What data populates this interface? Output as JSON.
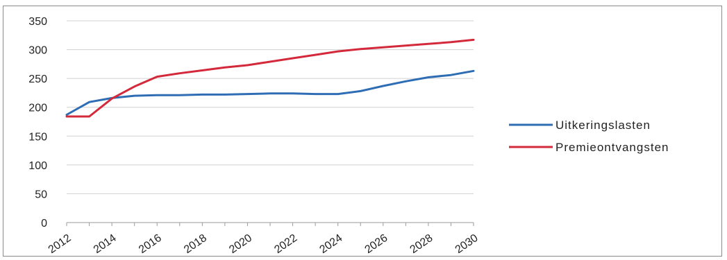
{
  "chart_data": {
    "type": "line",
    "title": "",
    "xlabel": "",
    "ylabel": "",
    "xlim": [
      2012,
      2030
    ],
    "ylim": [
      0,
      350
    ],
    "yticks": [
      0,
      50,
      100,
      150,
      200,
      250,
      300,
      350
    ],
    "ytick_labels": [
      "0",
      "50",
      "100",
      "150",
      "200",
      "250",
      "300",
      "350"
    ],
    "xtick_labels": [
      "2012",
      "2014",
      "2016",
      "2018",
      "2020",
      "2022",
      "2024",
      "2026",
      "2028",
      "2030"
    ],
    "grid": "horizontal",
    "legend_position": "right",
    "series": [
      {
        "name": "Uitkeringslasten",
        "color": "#2e6db4",
        "x": [
          2012,
          2013,
          2014,
          2015,
          2016,
          2017,
          2018,
          2019,
          2020,
          2021,
          2022,
          2023,
          2024,
          2025,
          2026,
          2027,
          2028,
          2029,
          2030
        ],
        "y": [
          187,
          209,
          216,
          220,
          221,
          221,
          222,
          222,
          223,
          224,
          224,
          223,
          223,
          228,
          237,
          245,
          252,
          256,
          263
        ]
      },
      {
        "name": "Premieontvangsten",
        "color": "#d3293b",
        "x": [
          2012,
          2013,
          2014,
          2015,
          2016,
          2017,
          2018,
          2019,
          2020,
          2021,
          2022,
          2023,
          2024,
          2025,
          2026,
          2027,
          2028,
          2029,
          2030
        ],
        "y": [
          184,
          184,
          215,
          236,
          253,
          259,
          264,
          269,
          273,
          279,
          285,
          291,
          297,
          301,
          304,
          307,
          310,
          313,
          317
        ]
      }
    ]
  }
}
